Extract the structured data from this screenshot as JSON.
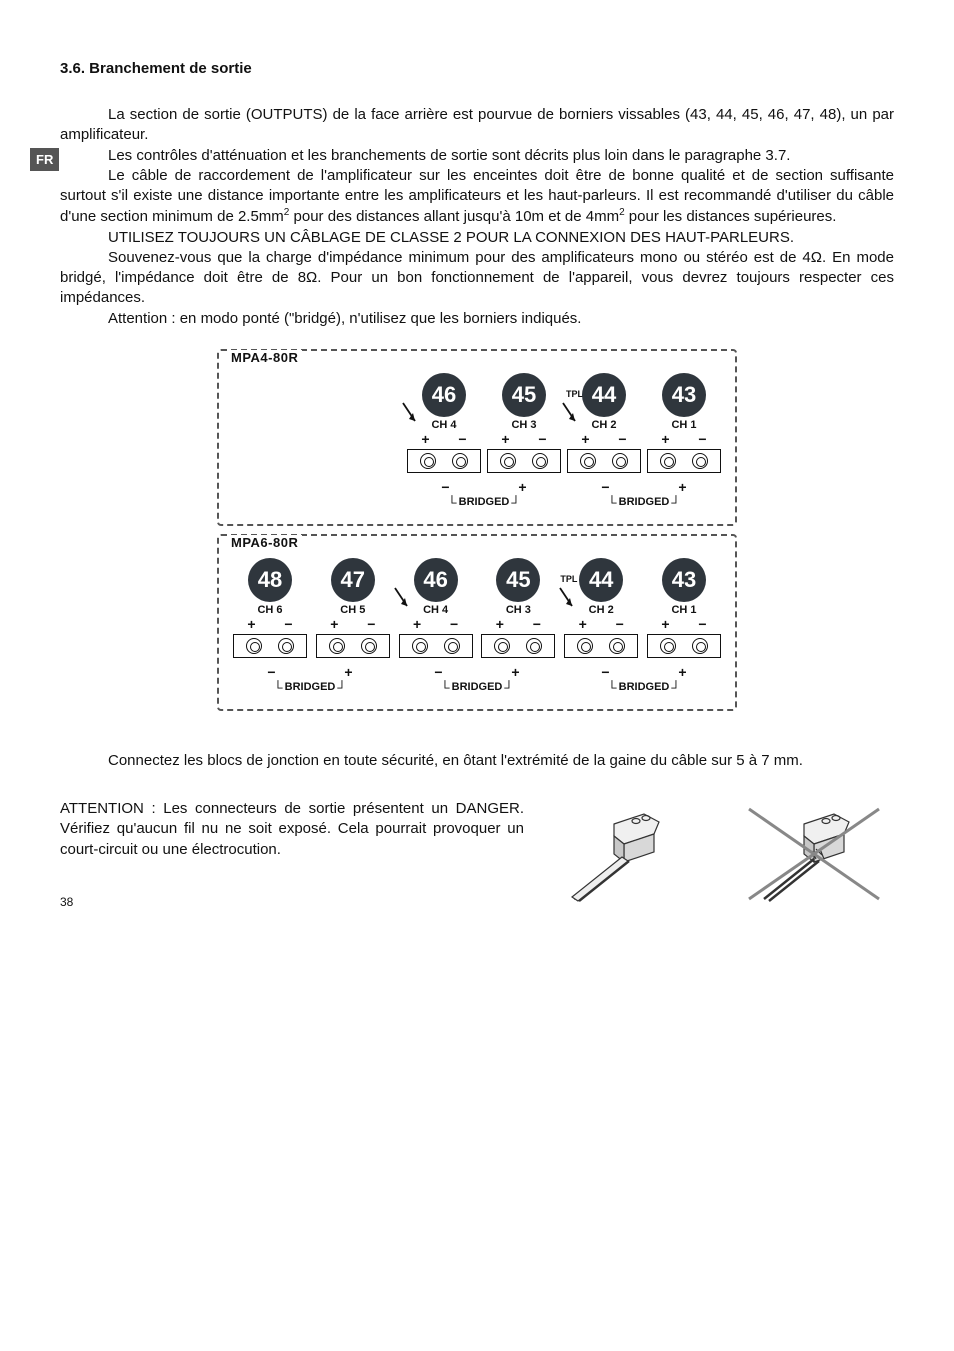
{
  "lang_tab": "FR",
  "section_title": "3.6. Branchement de sortie",
  "paragraphs": {
    "p1": "La section de sortie (OUTPUTS) de la face arrière est pourvue de borniers vissables (43, 44, 45, 46, 47, 48), un par amplificateur.",
    "p2": "Les contrôles d'atténuation et les branchements de sortie sont décrits plus loin dans le paragraphe 3.7.",
    "p3a": "Le câble de raccordement de l'amplificateur sur les enceintes doit être de bonne qualité et de section suffisante surtout s'il existe une distance importante entre les amplificateurs et les haut-parleurs. Il est recommandé d'utiliser du câble d'une section minimum de 2.5mm",
    "p3b": " pour des distances allant jusqu'à 10m et de 4mm",
    "p3c": " pour les distances supérieures.",
    "p4": "UTILISEZ TOUJOURS UN CÂBLAGE DE CLASSE 2 POUR LA CONNEXION DES HAUT-PARLEURS.",
    "p5": "Souvenez-vous que la charge d'impédance minimum pour des amplificateurs mono ou stéréo est de 4Ω. En mode bridgé, l'impédance doit être de 8Ω. Pour un bon fonctionnement de l'appareil, vous devrez toujours respecter ces impédances.",
    "p6": "Attention : en modo ponté (\"bridgé), n'utilisez que les borniers indiqués.",
    "p7": "Connectez les blocs de jonction en toute sécurité, en ôtant l'extrémité de la gaine du câble sur 5 à 7 mm.",
    "p8": "ATTENTION : Les connecteurs de sortie présentent un DANGER. Vérifiez qu'aucun fil nu ne soit exposé. Cela pourrait provoquer un court-circuit ou une électrocution."
  },
  "diagram4": {
    "title": "MPA4-80R",
    "tpl": "TPL",
    "channels": [
      {
        "callout": "46",
        "ch": "CH 4",
        "arrow": true
      },
      {
        "callout": "45",
        "ch": "CH 3",
        "arrow": false,
        "tpl": true
      },
      {
        "callout": "44",
        "ch": "CH 2",
        "arrow": true
      },
      {
        "callout": "43",
        "ch": "CH 1",
        "arrow": false
      }
    ],
    "bridged": "BRIDGED"
  },
  "diagram6": {
    "title": "MPA6-80R",
    "tpl": "TPL",
    "channels": [
      {
        "callout": "48",
        "ch": "CH 6",
        "arrow": false
      },
      {
        "callout": "47",
        "ch": "CH 5",
        "arrow": false
      },
      {
        "callout": "46",
        "ch": "CH 4",
        "arrow": true
      },
      {
        "callout": "45",
        "ch": "CH 3",
        "arrow": false,
        "tpl": true
      },
      {
        "callout": "44",
        "ch": "CH 2",
        "arrow": true
      },
      {
        "callout": "43",
        "ch": "CH 1",
        "arrow": false
      }
    ],
    "bridged": "BRIDGED"
  },
  "page_number": "38",
  "colors": {
    "callout_bg": "#2f363d",
    "text": "#111111",
    "tab_bg": "#555555",
    "dash": "#555555"
  }
}
